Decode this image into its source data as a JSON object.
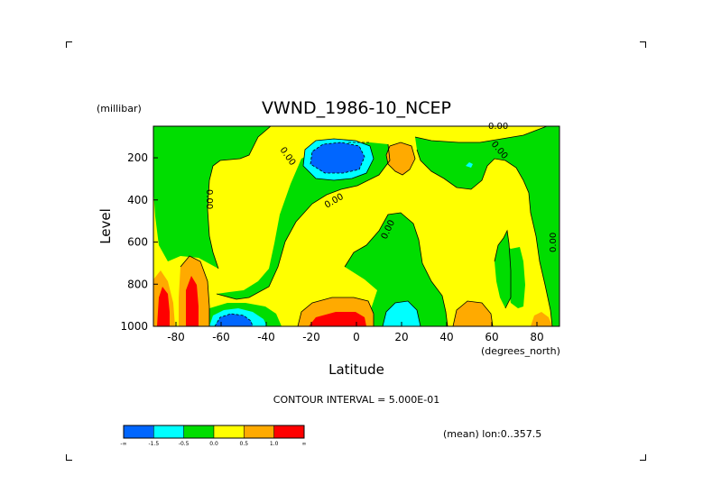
{
  "chart_data": {
    "type": "heatmap",
    "title": "VWND_1986-10_NCEP",
    "xlabel": "Latitude",
    "x_unit_label": "(degrees_north)",
    "ylabel": "Level",
    "y_unit_label": "(millibar)",
    "xlim": [
      -90,
      90
    ],
    "ylim": [
      1000,
      50
    ],
    "x_ticks": [
      -80,
      -60,
      -40,
      -20,
      0,
      20,
      40,
      60,
      80
    ],
    "x_tick_labels": [
      "-80",
      "-60",
      "-40",
      "-20",
      "0",
      "20",
      "40",
      "60",
      "80"
    ],
    "y_ticks": [
      200,
      400,
      600,
      800,
      1000
    ],
    "y_tick_labels": [
      "200",
      "400",
      "600",
      "800",
      "1000"
    ],
    "contour_interval_text": "CONTOUR INTERVAL = 5.000E-01",
    "mean_text": "(mean) lon:0..357.5",
    "contour_labels": [
      "0.00",
      "0.00",
      "0.00",
      "0.00",
      "0.00",
      "0.00",
      "0.00"
    ],
    "colorbar": {
      "colors": [
        "#0066ff",
        "#00ffff",
        "#00dd00",
        "#ffff00",
        "#ffaa00",
        "#ff0000"
      ],
      "labels": [
        "-∞",
        "-1.5",
        "-0.5",
        "0.0",
        "0.5",
        "1.0",
        "∞"
      ]
    },
    "regions": [
      {
        "level": "negative",
        "color": "#00dd00",
        "lat_range": [
          -90,
          -70
        ],
        "pres_range": [
          50,
          700
        ]
      },
      {
        "level": "negative",
        "color": "#00dd00",
        "lat_range": [
          -60,
          -25
        ],
        "pres_range": [
          750,
          1000
        ]
      },
      {
        "level": "strong negative",
        "color": "#0066ff",
        "lat_range": [
          -20,
          0
        ],
        "pres_range": [
          130,
          240
        ],
        "min_approx": -2.0
      },
      {
        "level": "positive",
        "color": "#ffaa00",
        "lat_range": [
          12,
          24
        ],
        "pres_range": [
          150,
          290
        ]
      },
      {
        "level": "strong positive",
        "color": "#ff0000",
        "lat_range": [
          -92,
          -85
        ],
        "pres_range": [
          760,
          1000
        ]
      },
      {
        "level": "strong positive",
        "color": "#ff0000",
        "lat_range": [
          -79,
          -73
        ],
        "pres_range": [
          750,
          1000
        ]
      },
      {
        "level": "strong positive",
        "color": "#ff0000",
        "lat_range": [
          -15,
          0
        ],
        "pres_range": [
          910,
          1000
        ]
      },
      {
        "level": "strong negative",
        "color": "#0066ff",
        "lat_range": [
          -65,
          -52
        ],
        "pres_range": [
          940,
          1000
        ]
      },
      {
        "level": "negative",
        "color": "#00ffff",
        "lat_range": [
          11,
          24
        ],
        "pres_range": [
          870,
          1000
        ]
      },
      {
        "level": "positive",
        "color": "#ffaa00",
        "lat_range": [
          46,
          60
        ],
        "pres_range": [
          870,
          1000
        ]
      },
      {
        "level": "positive",
        "color": "#ffaa00",
        "lat_range": [
          79,
          87
        ],
        "pres_range": [
          930,
          1000
        ]
      }
    ]
  }
}
